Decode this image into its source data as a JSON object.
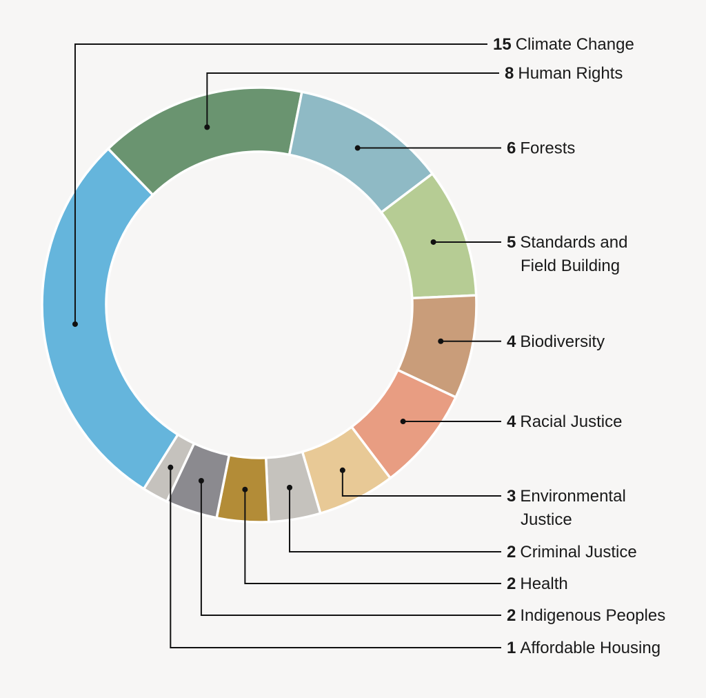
{
  "chart_data": {
    "type": "pie",
    "variant": "donut",
    "legend_placement": "right",
    "slices": [
      {
        "label": "Climate Change",
        "label_lines": [
          "Climate Change"
        ],
        "value": 15,
        "color": "#65b5dc"
      },
      {
        "label": "Human Rights",
        "label_lines": [
          "Human Rights"
        ],
        "value": 8,
        "color": "#6a9470"
      },
      {
        "label": "Forests",
        "label_lines": [
          "Forests"
        ],
        "value": 6,
        "color": "#8fbac5"
      },
      {
        "label": "Standards and Field Building",
        "label_lines": [
          "Standards and",
          "Field Building"
        ],
        "value": 5,
        "color": "#b6cc94"
      },
      {
        "label": "Biodiversity",
        "label_lines": [
          "Biodiversity"
        ],
        "value": 4,
        "color": "#c99d7a"
      },
      {
        "label": "Racial Justice",
        "label_lines": [
          "Racial Justice"
        ],
        "value": 4,
        "color": "#e89d82"
      },
      {
        "label": "Environmental Justice",
        "label_lines": [
          "Environmental",
          "Justice"
        ],
        "value": 3,
        "color": "#e8c996"
      },
      {
        "label": "Criminal Justice",
        "label_lines": [
          "Criminal Justice"
        ],
        "value": 2,
        "color": "#c5c2bd"
      },
      {
        "label": "Health",
        "label_lines": [
          "Health"
        ],
        "value": 2,
        "color": "#b38c37"
      },
      {
        "label": "Indigenous Peoples",
        "label_lines": [
          "Indigenous Peoples"
        ],
        "value": 2,
        "color": "#8b8a8f"
      },
      {
        "label": "Affordable Housing",
        "label_lines": [
          "Affordable Housing"
        ],
        "value": 1,
        "color": "#c5c2bd"
      }
    ]
  }
}
